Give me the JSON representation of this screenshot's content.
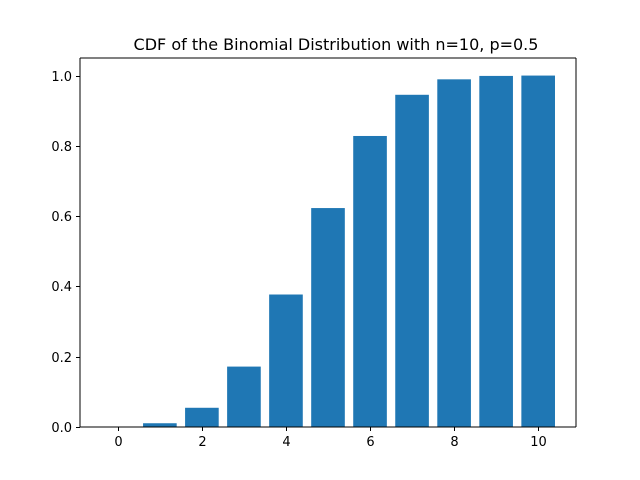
{
  "chart_data": {
    "type": "bar",
    "title": "CDF of the Binomial Distribution with n=10, p=0.5",
    "xlabel": "",
    "ylabel": "",
    "categories": [
      0,
      1,
      2,
      3,
      4,
      5,
      6,
      7,
      8,
      9,
      10
    ],
    "values": [
      0.001,
      0.0107,
      0.0547,
      0.1719,
      0.377,
      0.623,
      0.8281,
      0.9453,
      0.9893,
      0.999,
      1.0
    ],
    "xlim": [
      -0.9,
      10.9
    ],
    "ylim": [
      0,
      1.05
    ],
    "xticks": [
      0,
      2,
      4,
      6,
      8,
      10
    ],
    "xtick_labels": [
      "0",
      "2",
      "4",
      "6",
      "8",
      "10"
    ],
    "yticks": [
      0.0,
      0.2,
      0.4,
      0.6,
      0.8,
      1.0
    ],
    "ytick_labels": [
      "0.0",
      "0.2",
      "0.4",
      "0.6",
      "0.8",
      "1.0"
    ],
    "bar_width": 0.8,
    "bar_color": "#1f77b4",
    "grid": false,
    "legend": "none"
  }
}
